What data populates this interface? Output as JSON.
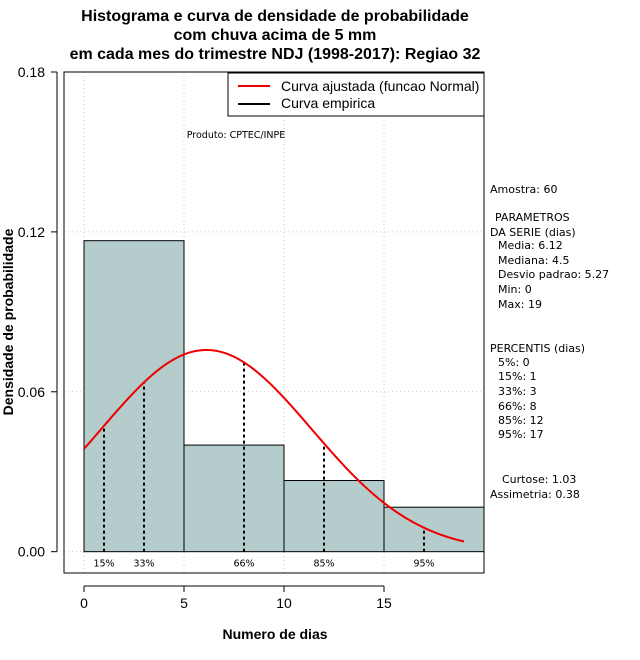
{
  "chart_data": {
    "type": "histogram",
    "title_lines": [
      "Histograma e curva de densidade de probabilidade",
      "com chuva acima de 5 mm",
      "em cada mes do trimestre NDJ (1998-2017): Regiao 32"
    ],
    "xlabel": "Numero de dias",
    "ylabel": "Densidade de probabilidade",
    "xlim": [
      -1,
      20
    ],
    "ylim": [
      -0.008,
      0.18
    ],
    "x_ticks": [
      0,
      5,
      10,
      15
    ],
    "y_ticks": [
      0.0,
      0.06,
      0.12,
      0.18
    ],
    "y_tick_labels": [
      "0.00",
      "0.06",
      "0.12",
      "0.18"
    ],
    "bins": [
      {
        "x0": 0,
        "x1": 5,
        "density": 0.1167
      },
      {
        "x0": 5,
        "x1": 10,
        "density": 0.04
      },
      {
        "x0": 10,
        "x1": 15,
        "density": 0.0267
      },
      {
        "x0": 15,
        "x1": 20,
        "density": 0.0167
      }
    ],
    "bar_fill": "#b4cccc",
    "normal_curve": {
      "mean": 6.12,
      "sd": 5.27,
      "x_range": [
        0,
        19
      ],
      "color": "#ee0000"
    },
    "percentile_lines": [
      {
        "label": "15%",
        "x": 1
      },
      {
        "label": "33%",
        "x": 3
      },
      {
        "label": "66%",
        "x": 8
      },
      {
        "label": "85%",
        "x": 12
      },
      {
        "label": "95%",
        "x": 17
      }
    ],
    "legend": [
      {
        "label": "Curva ajustada (funcao Normal)",
        "color": "#ee0000"
      },
      {
        "label": "Curva empirica",
        "color": "#000000"
      }
    ],
    "legend_position": "top-right",
    "grid": true,
    "product_note": "Produto: CPTEC/INPE"
  },
  "side_panel": {
    "amostra": "Amostra: 60",
    "param_title_1": "PARAMETROS",
    "param_title_2": "DA SERIE (dias)",
    "params": [
      "Media: 6.12",
      "Mediana: 4.5",
      "Desvio padrao: 5.27",
      "Min: 0",
      "Max: 19"
    ],
    "percentis_title": "PERCENTIS (dias)",
    "percentis": [
      "5%: 0",
      "15%: 1",
      "33%: 3",
      "66%: 8",
      "85%: 12",
      "95%: 17"
    ],
    "curtose": "Curtose: 1.03",
    "assimetria": "Assimetria: 0.38"
  }
}
